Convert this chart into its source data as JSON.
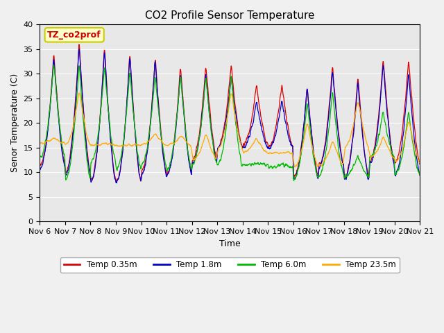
{
  "title": "CO2 Profile Sensor Temperature",
  "ylabel": "Senor Temperature (C)",
  "xlabel": "Time",
  "annotation_text": "TZ_co2prof",
  "annotation_color": "#cc0000",
  "annotation_bg": "#ffffcc",
  "annotation_border": "#cccc00",
  "ylim": [
    0,
    40
  ],
  "yticks": [
    0,
    5,
    10,
    15,
    20,
    25,
    30,
    35,
    40
  ],
  "xlabels": [
    "Nov 6",
    "Nov 7",
    "Nov 8",
    "Nov 9",
    "Nov 10",
    "Nov 11",
    "Nov 12",
    "Nov 13",
    "Nov 14",
    "Nov 15",
    "Nov 16",
    "Nov 17",
    "Nov 18",
    "Nov 19",
    "Nov 20",
    "Nov 21"
  ],
  "colors": {
    "temp_035m": "#dd0000",
    "temp_18m": "#0000cc",
    "temp_60m": "#00bb00",
    "temp_235m": "#ffaa00"
  },
  "legend_labels": [
    "Temp 0.35m",
    "Temp 1.8m",
    "Temp 6.0m",
    "Temp 23.5m"
  ],
  "grid_color": "#ffffff",
  "bg_color": "#e8e8e8",
  "title_fontsize": 11,
  "axis_fontsize": 9,
  "tick_fontsize": 8
}
